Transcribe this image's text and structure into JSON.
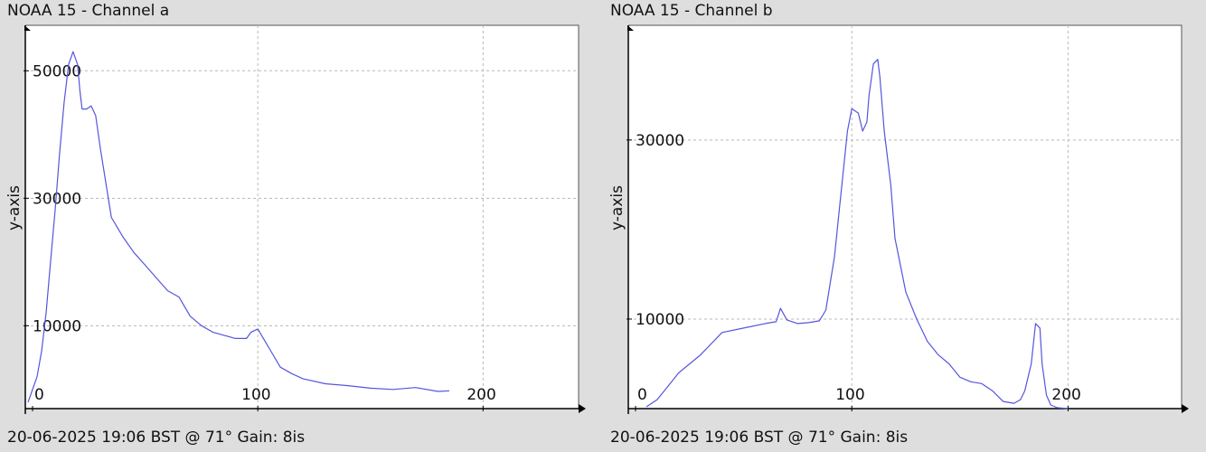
{
  "panels": [
    {
      "title": "NOAA 15 - Channel a",
      "footer": "20-06-2025 19:06 BST @ 71° Gain: 8is"
    },
    {
      "title": "NOAA 15 - Channel b",
      "footer": "20-06-2025 19:06 BST @ 71° Gain: 8is"
    }
  ],
  "chart_data": [
    {
      "type": "line",
      "title": "NOAA 15 - Channel a",
      "ylabel": "y-axis",
      "xlabel": "",
      "xlim": [
        0,
        240
      ],
      "ylim": [
        -3000,
        56000
      ],
      "xticks": [
        0,
        100,
        200
      ],
      "yticks": [
        10000,
        30000,
        50000
      ],
      "grid": true,
      "line_color": "#5555dd",
      "series": [
        {
          "x": [
            -2,
            0,
            2,
            4,
            6,
            8,
            10,
            12,
            14,
            16,
            18,
            19,
            20,
            21,
            22,
            24,
            26,
            28,
            30,
            35,
            40,
            45,
            50,
            55,
            60,
            65,
            70,
            75,
            80,
            85,
            90,
            95,
            97,
            100,
            105,
            110,
            115,
            120,
            130,
            140,
            150,
            160,
            170,
            180,
            185
          ],
          "y": [
            -2000,
            0,
            2000,
            6000,
            12000,
            20000,
            28000,
            37000,
            45000,
            51000,
            53000,
            52000,
            51000,
            47000,
            44000,
            44000,
            44500,
            43000,
            38000,
            27000,
            24000,
            21500,
            19500,
            17500,
            15500,
            14500,
            11500,
            10000,
            9000,
            8500,
            8000,
            8000,
            9000,
            9500,
            6500,
            3500,
            2500,
            1700,
            900,
            600,
            200,
            0,
            300,
            -300,
            -200
          ]
        }
      ]
    },
    {
      "type": "line",
      "title": "NOAA 15 - Channel b",
      "ylabel": "y-axis",
      "xlabel": "",
      "xlim": [
        0,
        250
      ],
      "ylim": [
        0,
        42000
      ],
      "xticks": [
        0,
        100,
        200
      ],
      "yticks": [
        10000,
        30000
      ],
      "grid": true,
      "line_color": "#5555dd",
      "series": [
        {
          "x": [
            5,
            10,
            15,
            20,
            30,
            40,
            50,
            60,
            65,
            67,
            70,
            75,
            80,
            85,
            88,
            92,
            95,
            98,
            100,
            103,
            105,
            107,
            108,
            110,
            112,
            113,
            115,
            118,
            120,
            125,
            130,
            135,
            140,
            145,
            150,
            155,
            160,
            165,
            170,
            175,
            178,
            180,
            183,
            185,
            187,
            188,
            190,
            192,
            195,
            200
          ],
          "y": [
            200,
            1000,
            2500,
            4000,
            6000,
            8500,
            9000,
            9500,
            9700,
            11200,
            9900,
            9500,
            9600,
            9800,
            11000,
            17000,
            24000,
            31000,
            33500,
            33000,
            31000,
            32000,
            35000,
            38500,
            39000,
            37000,
            31000,
            25000,
            19000,
            13000,
            10000,
            7500,
            6000,
            5000,
            3500,
            3000,
            2800,
            2000,
            800,
            600,
            1000,
            2000,
            5000,
            9500,
            9000,
            5000,
            1500,
            400,
            100,
            0
          ]
        }
      ]
    }
  ]
}
